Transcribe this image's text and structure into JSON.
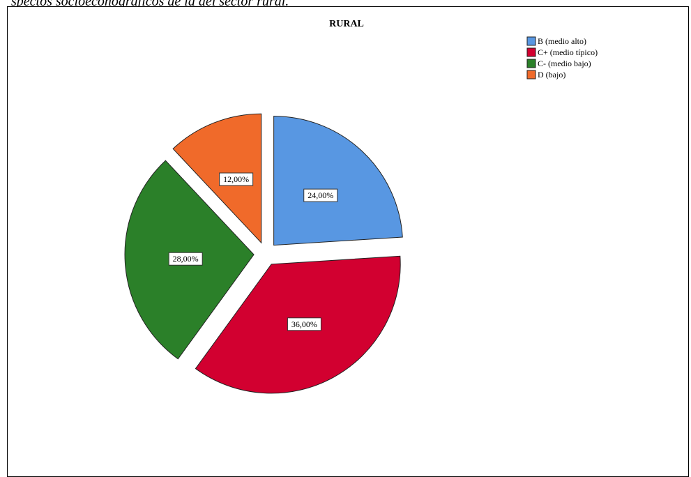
{
  "caption": "spectos socioeconógraficos de la del sector rural.",
  "chart_data": {
    "type": "pie",
    "title": "RURAL",
    "legend_position": "top-right",
    "exploded": true,
    "slices": [
      {
        "label": "B (medio alto)",
        "value": 24.0,
        "display": "24,00%",
        "color": "#5897E2"
      },
      {
        "label": "C+ (medio típico)",
        "value": 36.0,
        "display": "36,00%",
        "color": "#D20030"
      },
      {
        "label": "C- (medio bajo)",
        "value": 28.0,
        "display": "28,00%",
        "color": "#2B8029"
      },
      {
        "label": "D (bajo)",
        "value": 12.0,
        "display": "12,00%",
        "color": "#F06A2A"
      }
    ]
  }
}
